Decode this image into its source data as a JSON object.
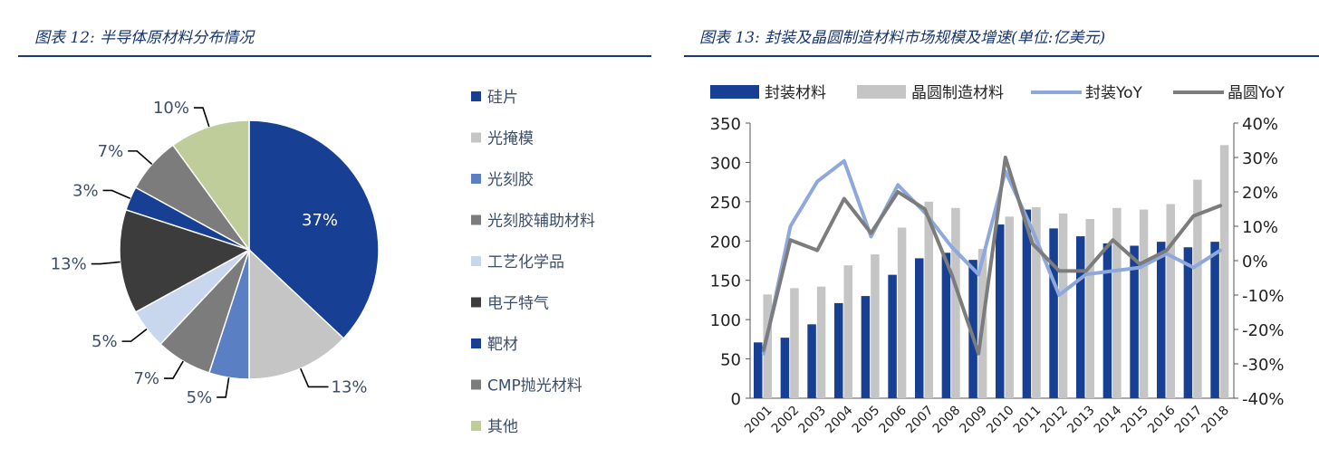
{
  "left": {
    "title": "图表 12:  半导体原材料分布情况",
    "chart_data": {
      "type": "pie",
      "slices": [
        {
          "label": "硅片",
          "value": 37,
          "pct_label": "37%",
          "color": "#173f93"
        },
        {
          "label": "光掩模",
          "value": 13,
          "pct_label": "13%",
          "color": "#c5c5c5"
        },
        {
          "label": "光刻胶",
          "value": 5,
          "pct_label": "5%",
          "color": "#5a7fc3"
        },
        {
          "label": "光刻胶辅助材料",
          "value": 7,
          "pct_label": "7%",
          "color": "#7c7c7c"
        },
        {
          "label": "工艺化学品",
          "value": 5,
          "pct_label": "5%",
          "color": "#c9d7ee"
        },
        {
          "label": "电子特气",
          "value": 13,
          "pct_label": "13%",
          "color": "#3c3c3c"
        },
        {
          "label": "靶材",
          "value": 3,
          "pct_label": "3%",
          "color": "#173f93"
        },
        {
          "label": "CMP抛光材料",
          "value": 7,
          "pct_label": "7%",
          "color": "#7c7c7c"
        },
        {
          "label": "其他",
          "value": 10,
          "pct_label": "10%",
          "color": "#bfcd9b"
        }
      ],
      "legend_position": "right"
    }
  },
  "right": {
    "title": "图表 13:  封装及晶圆制造材料市场规模及增速(单位:亿美元)",
    "chart_data": {
      "type": "bar",
      "categories": [
        "2001",
        "2002",
        "2003",
        "2004",
        "2005",
        "2006",
        "2007",
        "2008",
        "2009",
        "2010",
        "2011",
        "2012",
        "2013",
        "2014",
        "2015",
        "2016",
        "2017",
        "2018"
      ],
      "bar_series": [
        {
          "name": "封装材料",
          "color": "#173f93",
          "values": [
            71,
            77,
            94,
            121,
            130,
            157,
            178,
            185,
            176,
            221,
            240,
            216,
            206,
            197,
            194,
            199,
            192,
            199
          ]
        },
        {
          "name": "晶圆制造材料",
          "color": "#c5c5c5",
          "values": [
            132,
            140,
            142,
            169,
            183,
            217,
            250,
            242,
            190,
            231,
            243,
            235,
            228,
            242,
            240,
            247,
            278,
            322
          ]
        }
      ],
      "line_series": [
        {
          "name": "封装YoY",
          "color": "#8fa8dc",
          "values": [
            -27,
            10,
            23,
            29,
            7,
            22,
            14,
            4,
            -4,
            26,
            9,
            -10,
            -4,
            -3,
            -2,
            2,
            -2,
            3
          ]
        },
        {
          "name": "晶圆YoY",
          "color": "#7c7c7c",
          "values": [
            -26,
            6,
            3,
            18,
            8,
            20,
            15,
            -4,
            -27,
            30,
            5,
            -3,
            -3,
            6,
            -1,
            3,
            13,
            16
          ]
        }
      ],
      "y_left": {
        "min": 0,
        "max": 350,
        "ticks": [
          "0",
          "50",
          "100",
          "150",
          "200",
          "250",
          "300",
          "350"
        ]
      },
      "y_right": {
        "min": -40,
        "max": 40,
        "ticks": [
          "-40%",
          "-30%",
          "-20%",
          "-10%",
          "0%",
          "10%",
          "20%",
          "30%",
          "40%"
        ]
      },
      "legend_position": "top"
    }
  }
}
